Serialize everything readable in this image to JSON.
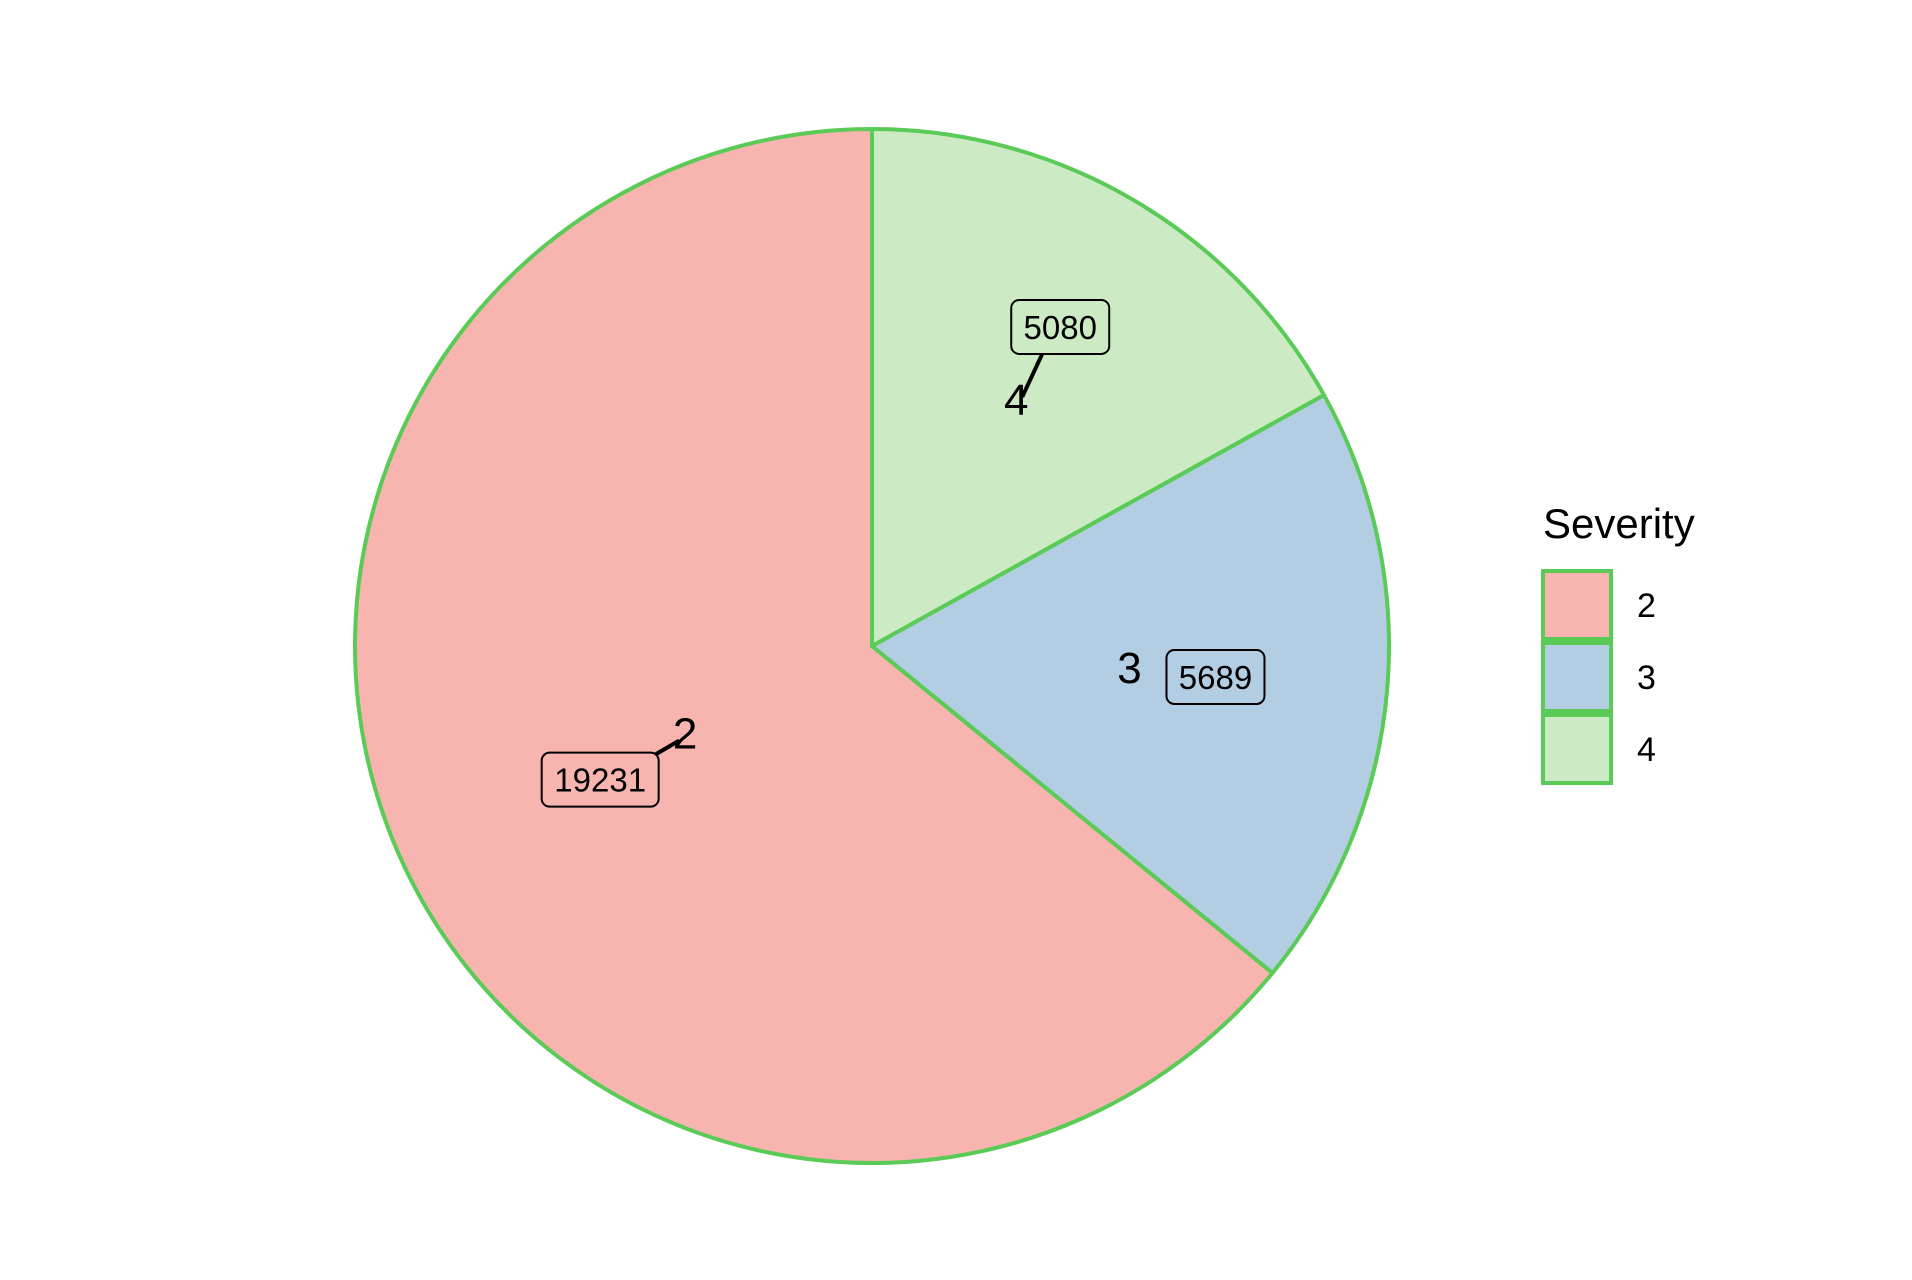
{
  "chart_data": {
    "type": "pie",
    "categories": [
      "2",
      "3",
      "4"
    ],
    "values": [
      19231,
      5689,
      5080
    ],
    "data_labels": [
      "19231",
      "5689",
      "5080"
    ],
    "slice_labels": [
      "2",
      "3",
      "4"
    ],
    "legend": {
      "title": "Severity",
      "placement": "right",
      "entries": [
        "2",
        "3",
        "4"
      ]
    },
    "colors": {
      "slices": [
        "#F8B4AE",
        "#B3CDE3",
        "#CCEBC5"
      ],
      "outline": "#5ACB56",
      "label_text": "#000000",
      "label_border": "#000000",
      "background": "#FFFFFF"
    },
    "start_angle": "12 o'clock",
    "direction": "counter-clockwise"
  }
}
